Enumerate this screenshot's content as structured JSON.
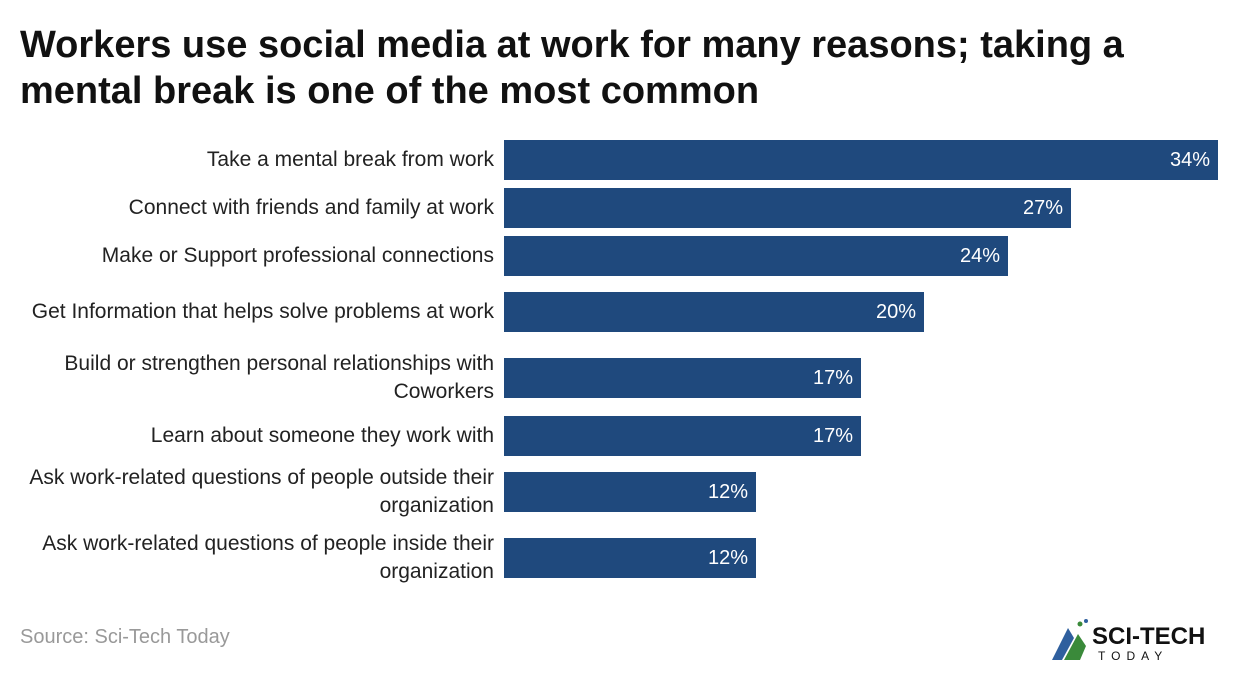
{
  "title": "Workers use social media at work for many reasons; taking a mental break is one of the most common",
  "source": "Source: Sci-Tech Today",
  "logo": {
    "line1": "SCI-TECH",
    "line2": "TODAY"
  },
  "colors": {
    "bar": "#1f497d"
  },
  "chart_data": {
    "type": "bar",
    "orientation": "horizontal",
    "title": "Workers use social media at work for many reasons; taking a mental break is one of the most common",
    "categories": [
      "Take a mental break from work",
      "Connect with friends and family at work",
      "Make or Support professional connections",
      "Get Information that helps solve problems at work",
      "Build or strengthen personal relationships with Coworkers",
      "Learn about someone they work with",
      "Ask work-related questions of people outside their organization",
      "Ask work-related questions of people inside their organization"
    ],
    "values": [
      34,
      27,
      24,
      20,
      17,
      17,
      12,
      12
    ],
    "value_labels": [
      "34%",
      "27%",
      "24%",
      "20%",
      "17%",
      "17%",
      "12%",
      "12%"
    ],
    "xlabel": "",
    "ylabel": "",
    "xlim": [
      0,
      34
    ],
    "grid": false
  }
}
